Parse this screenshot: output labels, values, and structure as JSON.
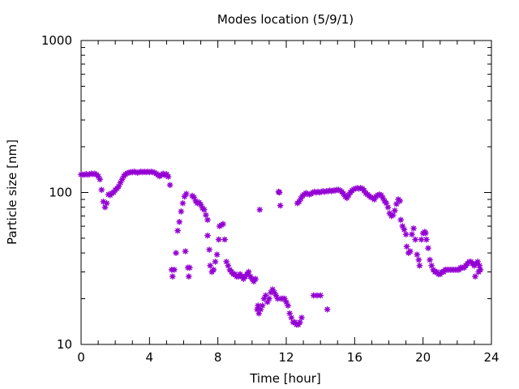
{
  "chart_data": {
    "type": "scatter",
    "title": "Modes location (5/9/1)",
    "xlabel": "Time [hour]",
    "ylabel": "Particle size [nm]",
    "xlim": [
      0,
      24
    ],
    "ylim": [
      10,
      1000
    ],
    "yscale": "log",
    "xticks": [
      0,
      4,
      8,
      12,
      16,
      20,
      24
    ],
    "yticks": [
      10,
      100,
      1000
    ],
    "xtick_labels": [
      "0",
      "4",
      "8",
      "12",
      "16",
      "20",
      "24"
    ],
    "ytick_labels": [
      "10",
      "100",
      "1000"
    ],
    "grid": false,
    "legend": "none",
    "colors": {
      "marker": "#9400d3"
    },
    "series": [
      {
        "values": [
          [
            0.0,
            131
          ],
          [
            0.1,
            131
          ],
          [
            0.2,
            131
          ],
          [
            0.3,
            132
          ],
          [
            0.4,
            131
          ],
          [
            0.5,
            132
          ],
          [
            0.6,
            133
          ],
          [
            0.7,
            132
          ],
          [
            0.8,
            133
          ],
          [
            0.9,
            131
          ],
          [
            1.0,
            128
          ],
          [
            1.1,
            122
          ],
          [
            1.2,
            104
          ],
          [
            1.3,
            87
          ],
          [
            1.4,
            80
          ],
          [
            1.5,
            85
          ],
          [
            1.6,
            97
          ],
          [
            1.7,
            96
          ],
          [
            1.8,
            99
          ],
          [
            1.9,
            100
          ],
          [
            2.0,
            104
          ],
          [
            2.1,
            106
          ],
          [
            2.2,
            110
          ],
          [
            2.3,
            116
          ],
          [
            2.4,
            122
          ],
          [
            2.5,
            128
          ],
          [
            2.6,
            132
          ],
          [
            2.7,
            134
          ],
          [
            2.8,
            135
          ],
          [
            2.9,
            136
          ],
          [
            3.0,
            136
          ],
          [
            3.1,
            137
          ],
          [
            3.2,
            136
          ],
          [
            3.3,
            135
          ],
          [
            3.4,
            136
          ],
          [
            3.5,
            137
          ],
          [
            3.6,
            136
          ],
          [
            3.7,
            137
          ],
          [
            3.8,
            136
          ],
          [
            3.9,
            137
          ],
          [
            4.0,
            136
          ],
          [
            4.1,
            137
          ],
          [
            4.2,
            136
          ],
          [
            4.3,
            135
          ],
          [
            4.4,
            133
          ],
          [
            4.5,
            130
          ],
          [
            4.6,
            128
          ],
          [
            4.7,
            131
          ],
          [
            4.8,
            133
          ],
          [
            4.9,
            130
          ],
          [
            5.0,
            132
          ],
          [
            5.1,
            127
          ],
          [
            5.2,
            112
          ],
          [
            5.3,
            31
          ],
          [
            5.35,
            28
          ],
          [
            5.45,
            31
          ],
          [
            5.55,
            40
          ],
          [
            5.65,
            56
          ],
          [
            5.75,
            64
          ],
          [
            5.85,
            75
          ],
          [
            5.95,
            85
          ],
          [
            6.05,
            94
          ],
          [
            6.15,
            98
          ],
          [
            6.1,
            41
          ],
          [
            6.25,
            32
          ],
          [
            6.3,
            28
          ],
          [
            6.35,
            32
          ],
          [
            6.5,
            95
          ],
          [
            6.6,
            93
          ],
          [
            6.7,
            88
          ],
          [
            6.8,
            85
          ],
          [
            6.9,
            86
          ],
          [
            7.0,
            83
          ],
          [
            7.1,
            79
          ],
          [
            7.2,
            77
          ],
          [
            7.3,
            71
          ],
          [
            7.4,
            66
          ],
          [
            7.4,
            52
          ],
          [
            7.5,
            42
          ],
          [
            7.55,
            33
          ],
          [
            7.65,
            30
          ],
          [
            7.75,
            31
          ],
          [
            7.85,
            35
          ],
          [
            7.95,
            39
          ],
          [
            8.05,
            49
          ],
          [
            8.1,
            60
          ],
          [
            8.2,
            61
          ],
          [
            8.3,
            62
          ],
          [
            8.4,
            49
          ],
          [
            8.5,
            35
          ],
          [
            8.6,
            33
          ],
          [
            8.7,
            31
          ],
          [
            8.8,
            30
          ],
          [
            8.9,
            29
          ],
          [
            9.0,
            29
          ],
          [
            9.1,
            28
          ],
          [
            9.2,
            28
          ],
          [
            9.3,
            29
          ],
          [
            9.4,
            28
          ],
          [
            9.5,
            27
          ],
          [
            9.6,
            28
          ],
          [
            9.7,
            29
          ],
          [
            9.8,
            30
          ],
          [
            9.9,
            28
          ],
          [
            10.0,
            27
          ],
          [
            10.1,
            26
          ],
          [
            10.2,
            27
          ],
          [
            10.3,
            17
          ],
          [
            10.35,
            18
          ],
          [
            10.4,
            16
          ],
          [
            10.45,
            77
          ],
          [
            10.5,
            17
          ],
          [
            10.6,
            18
          ],
          [
            10.7,
            20
          ],
          [
            10.8,
            21
          ],
          [
            10.9,
            19
          ],
          [
            11.0,
            20
          ],
          [
            11.1,
            22
          ],
          [
            11.2,
            23
          ],
          [
            11.3,
            22
          ],
          [
            11.4,
            21
          ],
          [
            11.5,
            20
          ],
          [
            11.55,
            101
          ],
          [
            11.6,
            100
          ],
          [
            11.65,
            82
          ],
          [
            11.7,
            20
          ],
          [
            11.8,
            20
          ],
          [
            11.9,
            20
          ],
          [
            12.0,
            19
          ],
          [
            12.1,
            18
          ],
          [
            12.2,
            16
          ],
          [
            12.3,
            15
          ],
          [
            12.4,
            14
          ],
          [
            12.5,
            14
          ],
          [
            12.6,
            13.5
          ],
          [
            12.7,
            13.5
          ],
          [
            12.8,
            14
          ],
          [
            12.9,
            15
          ],
          [
            12.65,
            85
          ],
          [
            12.75,
            87
          ],
          [
            12.85,
            91
          ],
          [
            12.95,
            95
          ],
          [
            13.05,
            97
          ],
          [
            13.15,
            99
          ],
          [
            13.25,
            98
          ],
          [
            13.35,
            97
          ],
          [
            13.45,
            98
          ],
          [
            13.55,
            100
          ],
          [
            13.65,
            101
          ],
          [
            13.75,
            100
          ],
          [
            13.85,
            101
          ],
          [
            13.95,
            100
          ],
          [
            14.05,
            101
          ],
          [
            14.15,
            102
          ],
          [
            14.25,
            101
          ],
          [
            14.35,
            102
          ],
          [
            13.6,
            21
          ],
          [
            13.8,
            21
          ],
          [
            14.0,
            21
          ],
          [
            14.4,
            17
          ],
          [
            14.45,
            102
          ],
          [
            14.55,
            103
          ],
          [
            14.65,
            102
          ],
          [
            14.75,
            103
          ],
          [
            14.85,
            103
          ],
          [
            14.95,
            104
          ],
          [
            15.05,
            104
          ],
          [
            15.15,
            103
          ],
          [
            15.25,
            101
          ],
          [
            15.35,
            98
          ],
          [
            15.45,
            94
          ],
          [
            15.55,
            92
          ],
          [
            15.65,
            96
          ],
          [
            15.75,
            100
          ],
          [
            15.85,
            103
          ],
          [
            15.95,
            105
          ],
          [
            16.05,
            106
          ],
          [
            16.15,
            107
          ],
          [
            16.25,
            106
          ],
          [
            16.35,
            107
          ],
          [
            16.45,
            106
          ],
          [
            16.55,
            103
          ],
          [
            16.65,
            99
          ],
          [
            16.75,
            97
          ],
          [
            16.85,
            95
          ],
          [
            16.95,
            93
          ],
          [
            17.05,
            92
          ],
          [
            17.15,
            90
          ],
          [
            17.25,
            94
          ],
          [
            17.35,
            96
          ],
          [
            17.45,
            97
          ],
          [
            17.55,
            96
          ],
          [
            17.65,
            92
          ],
          [
            17.75,
            88
          ],
          [
            17.85,
            85
          ],
          [
            17.95,
            80
          ],
          [
            18.05,
            73
          ],
          [
            18.15,
            70
          ],
          [
            18.25,
            71
          ],
          [
            18.35,
            76
          ],
          [
            18.45,
            84
          ],
          [
            18.55,
            90
          ],
          [
            18.65,
            88
          ],
          [
            18.7,
            66
          ],
          [
            18.8,
            60
          ],
          [
            18.9,
            57
          ],
          [
            19.0,
            53
          ],
          [
            19.05,
            44
          ],
          [
            19.15,
            40
          ],
          [
            19.25,
            41
          ],
          [
            19.35,
            53
          ],
          [
            19.45,
            58
          ],
          [
            19.55,
            49
          ],
          [
            19.65,
            39
          ],
          [
            19.75,
            36
          ],
          [
            19.8,
            33
          ],
          [
            19.9,
            49
          ],
          [
            20.0,
            54
          ],
          [
            20.1,
            55
          ],
          [
            20.15,
            54
          ],
          [
            20.2,
            49
          ],
          [
            20.3,
            43
          ],
          [
            20.4,
            36
          ],
          [
            20.5,
            33
          ],
          [
            20.6,
            31
          ],
          [
            20.7,
            30
          ],
          [
            20.8,
            30
          ],
          [
            20.9,
            29
          ],
          [
            21.0,
            29
          ],
          [
            21.1,
            30
          ],
          [
            21.2,
            30
          ],
          [
            21.3,
            31
          ],
          [
            21.4,
            31
          ],
          [
            21.5,
            31
          ],
          [
            21.6,
            31
          ],
          [
            21.7,
            31
          ],
          [
            21.8,
            31
          ],
          [
            21.9,
            31
          ],
          [
            22.0,
            31
          ],
          [
            22.1,
            31
          ],
          [
            22.2,
            32
          ],
          [
            22.3,
            32
          ],
          [
            22.4,
            32
          ],
          [
            22.5,
            33
          ],
          [
            22.6,
            34
          ],
          [
            22.7,
            35
          ],
          [
            22.8,
            35
          ],
          [
            22.9,
            34
          ],
          [
            23.0,
            33
          ],
          [
            23.05,
            28
          ],
          [
            23.1,
            34
          ],
          [
            23.2,
            35
          ],
          [
            23.25,
            30
          ],
          [
            23.3,
            33
          ],
          [
            23.35,
            31
          ]
        ]
      }
    ]
  }
}
